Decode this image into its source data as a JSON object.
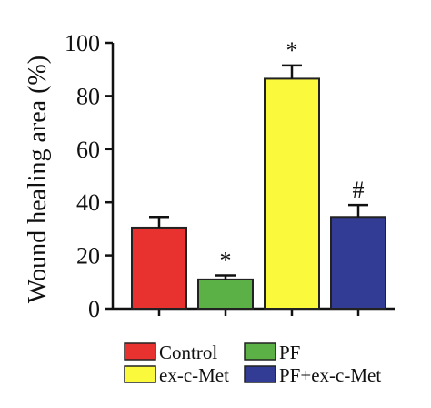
{
  "chart_data": {
    "type": "bar",
    "title": "",
    "xlabel": "",
    "ylabel": "Wound healing area (%)",
    "ylim": [
      0,
      100
    ],
    "yticks": [
      0,
      20,
      40,
      60,
      80,
      100
    ],
    "grid": false,
    "legend_placement": "bottom",
    "categories": [
      "Control",
      "PF",
      "ex-c-Met",
      "PF+ex-c-Met"
    ],
    "values": [
      30.5,
      11,
      86.5,
      34.5
    ],
    "errors": [
      4,
      1.5,
      5,
      4.5
    ],
    "annotations": [
      "",
      "*",
      "*",
      "#"
    ],
    "colors": [
      "#e8322f",
      "#5bb146",
      "#fbf93c",
      "#333c95"
    ]
  }
}
